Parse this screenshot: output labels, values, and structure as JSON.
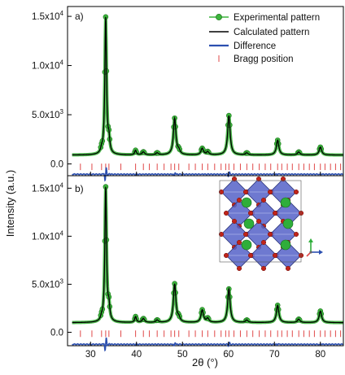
{
  "chart_data": {
    "type": "line",
    "x_axis": {
      "label": "2θ (°)",
      "range": [
        25,
        85
      ],
      "ticks": [
        "30",
        "40",
        "50",
        "60",
        "70",
        "80"
      ]
    },
    "y_axis": {
      "label": "Intensity (a.u.)"
    },
    "legend": {
      "placement": "top-right",
      "entries": [
        {
          "label": "Experimental pattern",
          "color": "#3cb43c",
          "marker": "circle-with-line"
        },
        {
          "label": "Calculated pattern",
          "color": "#000000",
          "marker": "line"
        },
        {
          "label": "Difference",
          "color": "#2b4fb0",
          "marker": "line"
        },
        {
          "label": "Bragg position",
          "color": "#e04848",
          "marker": "tick"
        }
      ]
    },
    "panels": [
      {
        "label": "a)",
        "y_range": [
          -1200,
          16000
        ],
        "y_ticks": [
          {
            "value": 0,
            "mantissa": "0.0",
            "exponent": ""
          },
          {
            "value": 5000,
            "mantissa": "5.0x10",
            "exponent": "3"
          },
          {
            "value": 10000,
            "mantissa": "1.0x10",
            "exponent": "4"
          },
          {
            "value": 15000,
            "mantissa": "1.5x10",
            "exponent": "4"
          }
        ],
        "background": 900,
        "peaks": [
          {
            "x": 32.4,
            "height": 350
          },
          {
            "x": 33.3,
            "height": 13900
          },
          {
            "x": 34.0,
            "height": 1300
          },
          {
            "x": 39.8,
            "height": 450
          },
          {
            "x": 41.5,
            "height": 300
          },
          {
            "x": 44.5,
            "height": 200
          },
          {
            "x": 48.3,
            "height": 3700
          },
          {
            "x": 49.2,
            "height": 350
          },
          {
            "x": 54.3,
            "height": 650
          },
          {
            "x": 55.5,
            "height": 300
          },
          {
            "x": 60.1,
            "height": 4000
          },
          {
            "x": 64.0,
            "height": 200
          },
          {
            "x": 70.7,
            "height": 1500
          },
          {
            "x": 75.3,
            "height": 300
          },
          {
            "x": 80.0,
            "height": 800
          }
        ],
        "bragg_y": -300,
        "difference_y": -1050
      },
      {
        "label": "b)",
        "y_range": [
          -1400,
          16300
        ],
        "y_ticks": [
          {
            "value": 0,
            "mantissa": "0.0",
            "exponent": ""
          },
          {
            "value": 5000,
            "mantissa": "5.0x10",
            "exponent": "3"
          },
          {
            "value": 10000,
            "mantissa": "1.0x10",
            "exponent": "4"
          },
          {
            "value": 15000,
            "mantissa": "1.5x10",
            "exponent": "4"
          }
        ],
        "background": 1000,
        "peaks": [
          {
            "x": 32.4,
            "height": 300
          },
          {
            "x": 33.3,
            "height": 14000
          },
          {
            "x": 34.0,
            "height": 1400
          },
          {
            "x": 39.8,
            "height": 600
          },
          {
            "x": 41.5,
            "height": 400
          },
          {
            "x": 44.5,
            "height": 250
          },
          {
            "x": 48.3,
            "height": 4000
          },
          {
            "x": 49.2,
            "height": 400
          },
          {
            "x": 54.3,
            "height": 1300
          },
          {
            "x": 55.5,
            "height": 400
          },
          {
            "x": 60.1,
            "height": 3500
          },
          {
            "x": 64.0,
            "height": 250
          },
          {
            "x": 70.7,
            "height": 1800
          },
          {
            "x": 75.3,
            "height": 350
          },
          {
            "x": 80.0,
            "height": 1200
          }
        ],
        "bragg_y": -150,
        "difference_y": -1250,
        "inset": "perovskite-crystal-structure"
      }
    ],
    "bragg_positions": [
      27.8,
      30.3,
      32.4,
      33.3,
      34.0,
      36.6,
      39.8,
      41.5,
      42.8,
      44.5,
      46.0,
      47.5,
      48.3,
      49.2,
      51.4,
      52.8,
      54.3,
      55.5,
      57.0,
      58.4,
      59.4,
      60.1,
      61.2,
      62.6,
      64.0,
      65.3,
      66.7,
      68.0,
      69.2,
      70.7,
      71.6,
      72.8,
      73.9,
      75.3,
      76.4,
      77.6,
      78.7,
      80.0,
      81.0,
      82.2,
      83.3,
      84.4
    ],
    "colors": {
      "experimental": "#3cb43c",
      "calculated": "#000000",
      "difference": "#2b4fb0",
      "bragg": "#e04848",
      "inset_octahedra": "#5561c8",
      "inset_oxygen": "#c0241a",
      "inset_a_site": "#2fae3a"
    }
  }
}
